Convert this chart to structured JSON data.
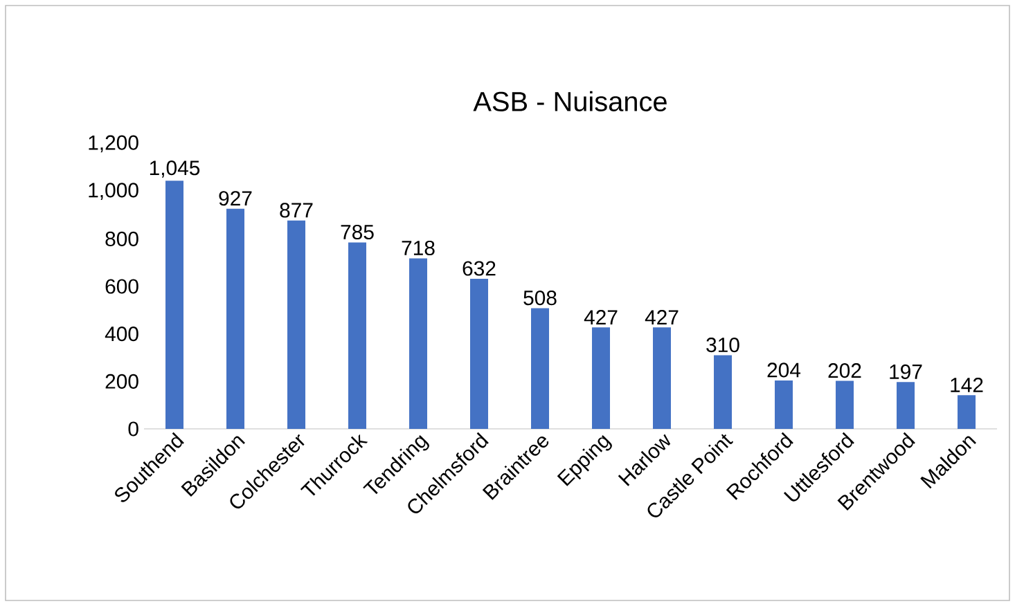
{
  "chart_data": {
    "type": "bar",
    "title": "ASB - Nuisance",
    "categories": [
      "Southend",
      "Basildon",
      "Colchester",
      "Thurrock",
      "Tendring",
      "Chelmsford",
      "Braintree",
      "Epping",
      "Harlow",
      "Castle Point",
      "Rochford",
      "Uttlesford",
      "Brentwood",
      "Maldon"
    ],
    "values": [
      1045,
      927,
      877,
      785,
      718,
      632,
      508,
      427,
      427,
      310,
      204,
      202,
      197,
      142
    ],
    "value_labels": [
      "1,045",
      "927",
      "877",
      "785",
      "718",
      "632",
      "508",
      "427",
      "427",
      "310",
      "204",
      "202",
      "197",
      "142"
    ],
    "color": "#4472c4",
    "ylim": [
      0,
      1200
    ],
    "yticks": [
      0,
      200,
      400,
      600,
      800,
      {
        "value": 1000,
        "label": "1,000"
      },
      {
        "value": 1200,
        "label": "1,200"
      }
    ],
    "grid": false
  }
}
